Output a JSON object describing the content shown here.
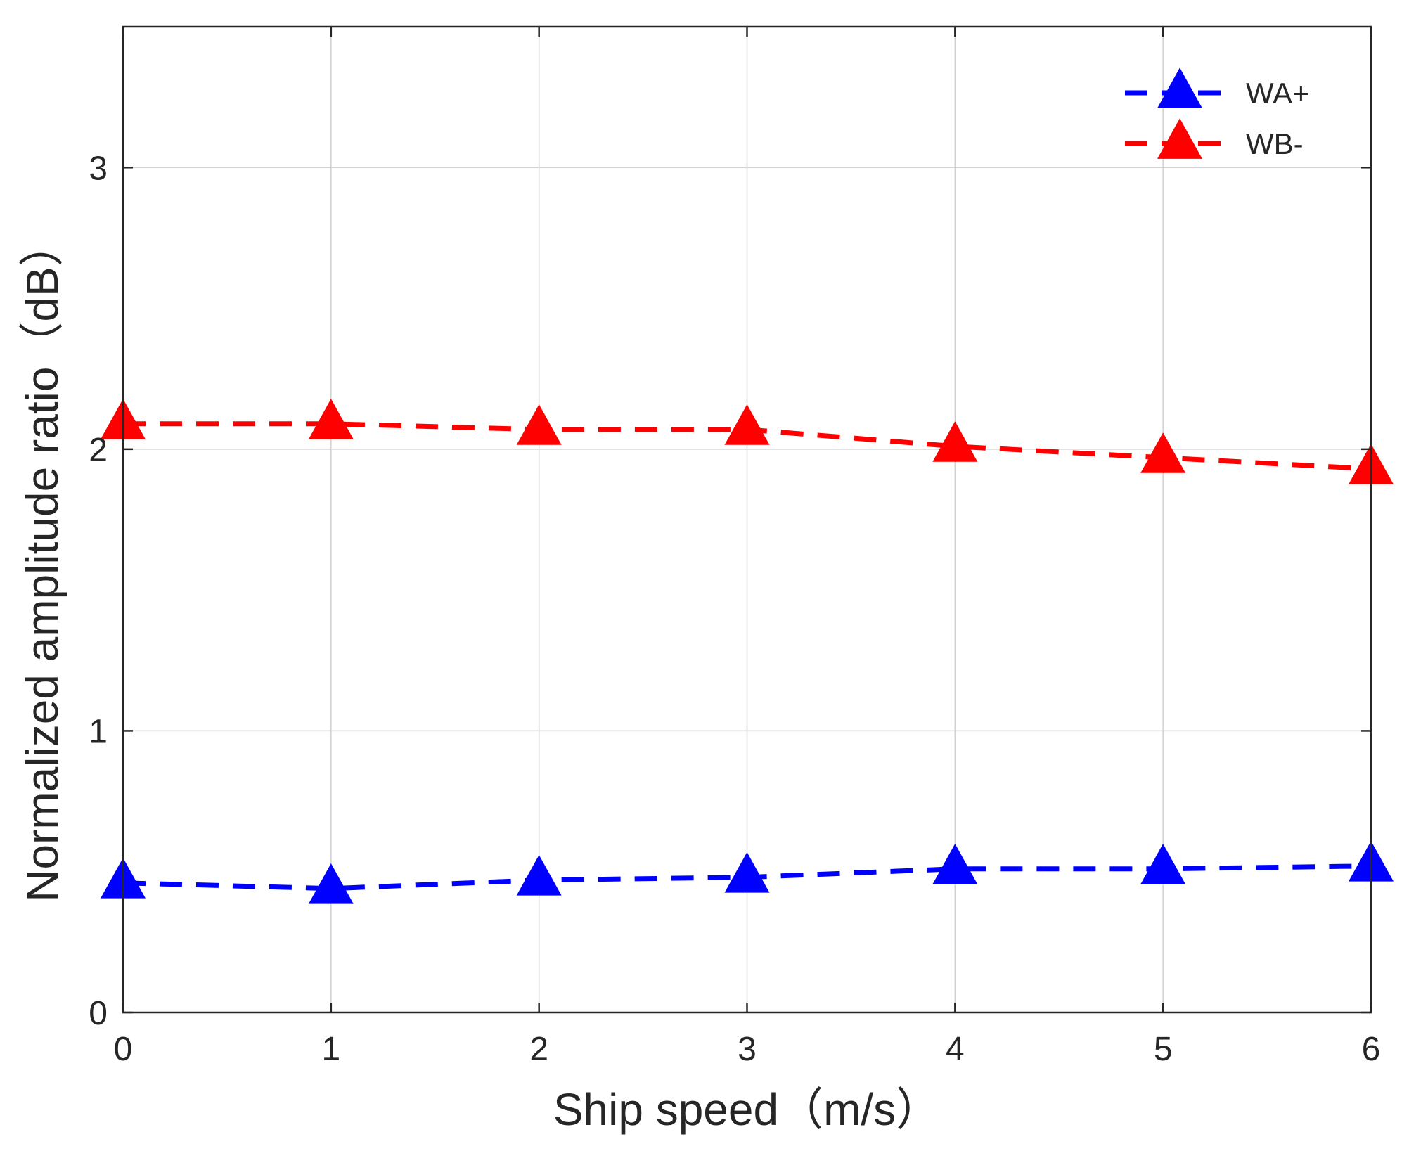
{
  "chart_data": {
    "type": "line",
    "title": "",
    "xlabel": "Ship speed（m/s）",
    "ylabel": "Normalized amplitude ratio（dB）",
    "xlim": [
      0,
      6
    ],
    "ylim": [
      0,
      3.5
    ],
    "xticks": [
      "0",
      "1",
      "2",
      "3",
      "4",
      "5",
      "6"
    ],
    "yticks": [
      "0",
      "1",
      "2",
      "3"
    ],
    "grid": true,
    "legend_position": "top-right",
    "x": [
      0,
      1,
      2,
      3,
      4,
      5,
      6
    ],
    "series": [
      {
        "name": "WA+",
        "color": "#0000ff",
        "marker": "triangle",
        "line_style": "dashed",
        "values": [
          0.46,
          0.44,
          0.47,
          0.48,
          0.51,
          0.51,
          0.52
        ]
      },
      {
        "name": "WB-",
        "color": "#ff0000",
        "marker": "triangle",
        "line_style": "dashed",
        "values": [
          2.09,
          2.09,
          2.07,
          2.07,
          2.01,
          1.97,
          1.93
        ]
      }
    ]
  }
}
